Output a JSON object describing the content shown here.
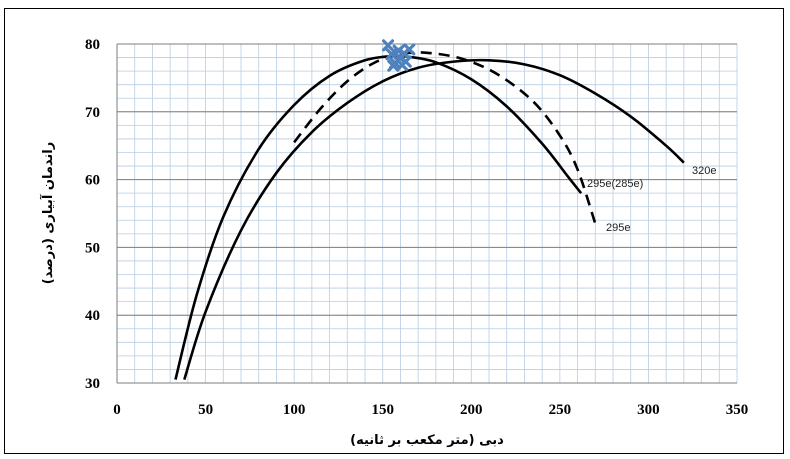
{
  "chart_data": {
    "type": "line",
    "xlabel": "دبی (متر مکعب بر ثانیه)",
    "ylabel": "راندمان آبیاری (درصد)",
    "xlim": [
      0,
      350
    ],
    "ylim": [
      30,
      80
    ],
    "xticks": [
      "0",
      "50",
      "100",
      "150",
      "200",
      "250",
      "300",
      "350"
    ],
    "yticks": [
      "30",
      "40",
      "50",
      "60",
      "70",
      "80"
    ],
    "grid": true,
    "colors": {
      "curve": "#000000",
      "marker": "#4f81bd",
      "minor_grid": "#b8cde4",
      "major_grid": "#7d7d7d"
    },
    "series": [
      {
        "name": "295e(285e)",
        "style": "solid",
        "x": [
          33,
          45,
          60,
          80,
          100,
          120,
          140,
          155,
          165,
          180,
          200,
          220,
          240,
          255,
          262
        ],
        "y": [
          30.5,
          43,
          54.5,
          64.5,
          71,
          75.3,
          77.6,
          78.2,
          78.1,
          77.3,
          74.8,
          70.8,
          65.3,
          60.3,
          58
        ]
      },
      {
        "name": "295e",
        "style": "dashed",
        "x": [
          100,
          115,
          130,
          145,
          160,
          175,
          195,
          215,
          235,
          250,
          260,
          270
        ],
        "y": [
          65.5,
          70.5,
          74.5,
          77.2,
          78.5,
          78.7,
          77.8,
          75.5,
          71.5,
          66.5,
          61.5,
          53.5
        ]
      },
      {
        "name": "320e",
        "style": "solid",
        "x": [
          38,
          50,
          70,
          90,
          110,
          130,
          150,
          170,
          190,
          210,
          230,
          250,
          270,
          290,
          310,
          320
        ],
        "y": [
          30.5,
          40.5,
          52.5,
          61,
          67,
          71.3,
          74.5,
          76.5,
          77.4,
          77.6,
          77,
          75.4,
          72.7,
          69.3,
          65,
          62.5
        ]
      }
    ],
    "markers": [
      {
        "x": 153,
        "y": 79.8
      },
      {
        "x": 155,
        "y": 78.5
      },
      {
        "x": 157,
        "y": 77.2
      },
      {
        "x": 159,
        "y": 79.0
      },
      {
        "x": 160,
        "y": 77.9
      },
      {
        "x": 162,
        "y": 78.6
      },
      {
        "x": 163,
        "y": 77.4
      },
      {
        "x": 165,
        "y": 79.2
      },
      {
        "x": 156,
        "y": 76.8
      },
      {
        "x": 161,
        "y": 76.9
      }
    ]
  }
}
